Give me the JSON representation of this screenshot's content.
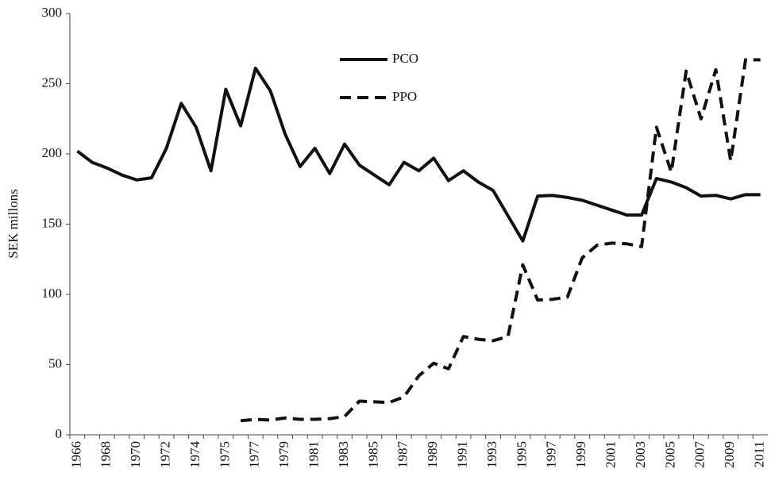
{
  "chart_data": {
    "type": "line",
    "y_label": "SEK millons",
    "categories": [
      "1966",
      null,
      "1968",
      null,
      "1970",
      null,
      "1972",
      null,
      "1974",
      null,
      "1975",
      null,
      "1977",
      null,
      "1979",
      null,
      "1981",
      null,
      "1983",
      null,
      "1985",
      null,
      "1987",
      null,
      "1989",
      null,
      "1991",
      null,
      "1993",
      null,
      "1995",
      null,
      "1997",
      null,
      "1999",
      null,
      "2001",
      null,
      "2003",
      null,
      "2005",
      null,
      "2007",
      null,
      "2009",
      null,
      "2011"
    ],
    "series": [
      {
        "name": "PCO",
        "color": "#111111",
        "dash": false,
        "values": [
          202,
          194,
          190,
          185,
          181.5,
          183,
          204,
          236,
          219,
          188,
          246,
          220,
          261,
          245,
          214,
          191,
          204,
          186,
          207,
          192,
          185,
          178,
          194,
          188,
          197,
          181,
          188,
          180,
          174,
          156,
          138,
          170,
          170.5,
          169,
          167,
          163.5,
          160,
          156.5,
          156.5,
          182.5,
          180,
          176,
          170,
          170.5,
          168,
          171,
          171
        ]
      },
      {
        "name": "PPO",
        "color": "#111111",
        "dash": true,
        "values": [
          null,
          null,
          null,
          null,
          null,
          null,
          null,
          null,
          null,
          null,
          null,
          10,
          11,
          10.5,
          12,
          11,
          11,
          11.5,
          13,
          24,
          23.5,
          23,
          27,
          42,
          51,
          47,
          70,
          68,
          67,
          70,
          121,
          96,
          96.5,
          98,
          126,
          135,
          136.5,
          136,
          134,
          219,
          187,
          259,
          225,
          260,
          195,
          267,
          267
        ]
      }
    ],
    "ylim": [
      0,
      300
    ],
    "yticks": [
      0,
      50,
      100,
      150,
      200,
      250,
      300
    ],
    "grid": false
  }
}
